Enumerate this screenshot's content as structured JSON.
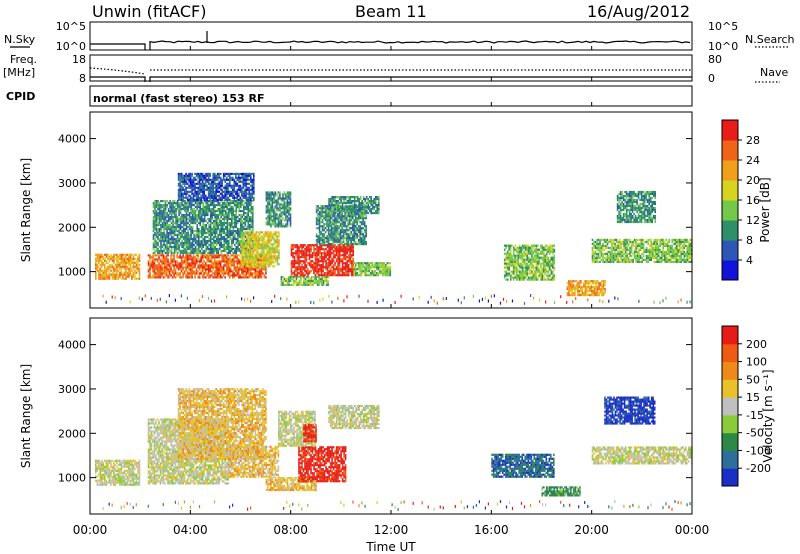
{
  "header": {
    "station": "Unwin (fitACF)",
    "beam": "Beam 11",
    "date": "16/Aug/2012"
  },
  "strips": {
    "nsky_label": "N.Sky",
    "nsearch_label": "N.Search",
    "freq_label_1": "Freq.",
    "freq_label_2": "[MHz]",
    "nave_label": "Nave",
    "cpid_label": "CPID",
    "noise_ticks_left": [
      "10^5",
      "10^0"
    ],
    "noise_ticks_right": [
      "10^5",
      "10^0"
    ],
    "freq_ticks": [
      "18",
      "8"
    ],
    "nave_ticks": [
      "80",
      "0"
    ],
    "cpid_text": "normal (fast stereo) 153 RF"
  },
  "xaxis": {
    "label": "Time UT",
    "ticks": [
      "00:00",
      "04:00",
      "08:00",
      "12:00",
      "16:00",
      "20:00",
      "00:00"
    ]
  },
  "chart_data": [
    {
      "type": "heatmap",
      "title": "Power",
      "ylabel": "Slant Range [km]",
      "xlabel": "Time UT",
      "xlim": [
        0,
        24
      ],
      "ylim": [
        180,
        4600
      ],
      "yticks": [
        "1000",
        "2000",
        "3000",
        "4000"
      ],
      "colorbar": {
        "label": "Power [dB]",
        "ticks": [
          "4",
          "8",
          "12",
          "16",
          "20",
          "24",
          "28"
        ],
        "colors": [
          "#1212d8",
          "#2c57b4",
          "#2f8f6a",
          "#74c84a",
          "#d7d321",
          "#f0a01c",
          "#ef6417",
          "#e81d17"
        ]
      },
      "regions": [
        {
          "t0": 0.2,
          "t1": 2.0,
          "r0": 820,
          "r1": 1400,
          "level": 5
        },
        {
          "t0": 2.3,
          "t1": 7.0,
          "r0": 850,
          "r1": 1350,
          "level": 6
        },
        {
          "t0": 2.5,
          "t1": 6.5,
          "r0": 1400,
          "r1": 2600,
          "level": 2
        },
        {
          "t0": 3.5,
          "t1": 6.5,
          "r0": 2600,
          "r1": 3200,
          "level": 1
        },
        {
          "t0": 6.0,
          "t1": 7.5,
          "r0": 1100,
          "r1": 1900,
          "level": 4
        },
        {
          "t0": 7.0,
          "t1": 8.0,
          "r0": 2000,
          "r1": 2800,
          "level": 2
        },
        {
          "t0": 7.6,
          "t1": 9.5,
          "r0": 680,
          "r1": 900,
          "level": 3
        },
        {
          "t0": 8.0,
          "t1": 10.5,
          "r0": 900,
          "r1": 1600,
          "level": 7
        },
        {
          "t0": 9.0,
          "t1": 11.0,
          "r0": 1600,
          "r1": 2500,
          "level": 2
        },
        {
          "t0": 9.5,
          "t1": 11.5,
          "r0": 2300,
          "r1": 2700,
          "level": 2
        },
        {
          "t0": 10.5,
          "t1": 12.0,
          "r0": 900,
          "r1": 1200,
          "level": 3
        },
        {
          "t0": 16.5,
          "t1": 18.5,
          "r0": 800,
          "r1": 1600,
          "level": 3
        },
        {
          "t0": 19.0,
          "t1": 20.5,
          "r0": 450,
          "r1": 800,
          "level": 5
        },
        {
          "t0": 20.0,
          "t1": 24.0,
          "r0": 1200,
          "r1": 1700,
          "level": 3
        },
        {
          "t0": 21.0,
          "t1": 22.5,
          "r0": 2100,
          "r1": 2800,
          "level": 2
        }
      ]
    },
    {
      "type": "heatmap",
      "title": "Velocity",
      "ylabel": "Slant Range [km]",
      "xlabel": "Time UT",
      "xlim": [
        0,
        24
      ],
      "ylim": [
        180,
        4600
      ],
      "yticks": [
        "1000",
        "2000",
        "3000",
        "4000"
      ],
      "colorbar": {
        "label": "Velocity [m s⁻¹]",
        "ticks": [
          "200",
          "100",
          "50",
          "15",
          "-15",
          "-50",
          "-100",
          "-200"
        ],
        "colors": [
          "#1a2fc4",
          "#2d6e9a",
          "#2d8a46",
          "#8acb3a",
          "#c0c0c0",
          "#e8c228",
          "#ef8a1a",
          "#ef5a14",
          "#e81c16"
        ]
      },
      "regions": [
        {
          "t0": 0.2,
          "t1": 2.0,
          "r0": 820,
          "r1": 1400,
          "level": 4
        },
        {
          "t0": 2.3,
          "t1": 5.5,
          "r0": 850,
          "r1": 2300,
          "level": 4
        },
        {
          "t0": 3.5,
          "t1": 7.0,
          "r0": 1400,
          "r1": 3000,
          "level": 5
        },
        {
          "t0": 5.5,
          "t1": 7.5,
          "r0": 1000,
          "r1": 1700,
          "level": 5
        },
        {
          "t0": 7.0,
          "t1": 9.0,
          "r0": 700,
          "r1": 1000,
          "level": 5
        },
        {
          "t0": 8.3,
          "t1": 10.2,
          "r0": 900,
          "r1": 1700,
          "level": 8
        },
        {
          "t0": 7.5,
          "t1": 9.0,
          "r0": 1700,
          "r1": 2500,
          "level": 4
        },
        {
          "t0": 8.5,
          "t1": 9.0,
          "r0": 1800,
          "r1": 2200,
          "level": 8
        },
        {
          "t0": 9.5,
          "t1": 11.5,
          "r0": 2100,
          "r1": 2600,
          "level": 4
        },
        {
          "t0": 16.0,
          "t1": 18.5,
          "r0": 1000,
          "r1": 1500,
          "level": 1
        },
        {
          "t0": 18.0,
          "t1": 19.5,
          "r0": 580,
          "r1": 800,
          "level": 2
        },
        {
          "t0": 20.0,
          "t1": 24.0,
          "r0": 1300,
          "r1": 1700,
          "level": 4
        },
        {
          "t0": 20.5,
          "t1": 22.5,
          "r0": 2200,
          "r1": 2800,
          "level": 0
        }
      ]
    }
  ]
}
